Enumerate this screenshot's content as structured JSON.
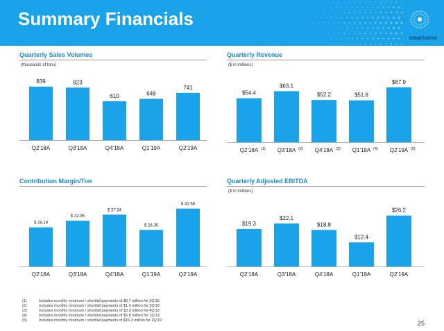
{
  "header": {
    "title": "Summary Financials",
    "brand": "smartsand"
  },
  "colors": {
    "header_bg": "#1aa3e8",
    "bar": "#1aa3e8",
    "title": "#1a8ad8"
  },
  "chart_data": [
    {
      "type": "bar",
      "title": "Quarterly Sales Volumes",
      "subtitle": "(thousands of tons)",
      "categories": [
        "Q2'18A",
        "Q3'18A",
        "Q4'18A",
        "Q1'19A",
        "Q2'19A"
      ],
      "category_notes": [
        "",
        "",
        "",
        "",
        ""
      ],
      "values": [
        839,
        823,
        610,
        648,
        741
      ],
      "labels": [
        "839",
        "823",
        "610",
        "648",
        "741"
      ],
      "ylim": [
        0,
        1000
      ]
    },
    {
      "type": "bar",
      "title": "Quarterly Revenue",
      "subtitle": "($ in millions)",
      "categories": [
        "Q2'18A",
        "Q3'18A",
        "Q4'18A",
        "Q1'19A",
        "Q2'19A"
      ],
      "category_notes": [
        "(1)",
        "(2)",
        "(3)",
        "(4)",
        "(5)"
      ],
      "values": [
        54.4,
        63.1,
        52.2,
        51.8,
        67.9
      ],
      "labels": [
        "$54.4",
        "$63.1",
        "$52.2",
        "$51.8",
        "$67.9"
      ],
      "ylim": [
        0,
        78
      ]
    },
    {
      "type": "bar",
      "title": "Contribution Margin/Ton",
      "subtitle": "",
      "categories": [
        "Q2'18A",
        "Q3'18A",
        "Q4'18A",
        "Q1'19A",
        "Q2'19A"
      ],
      "category_notes": [
        "",
        "",
        "",
        "",
        ""
      ],
      "values": [
        28.19,
        32.95,
        37.34,
        26.35,
        41.68
      ],
      "labels": [
        "$ 28.19",
        "$ 32.95",
        "$ 37.34",
        "$ 26.35",
        "$ 41.68"
      ],
      "ylim": [
        0,
        45
      ]
    },
    {
      "type": "bar",
      "title": "Quarterly Adjusted EBITDA",
      "subtitle": "($ in millions)",
      "categories": [
        "Q2'18A",
        "Q3'18A",
        "Q4'18A",
        "Q1'19A",
        "Q2'19A"
      ],
      "category_notes": [
        "",
        "",
        "",
        "",
        ""
      ],
      "values": [
        19.3,
        22.1,
        18.8,
        12.4,
        26.2
      ],
      "labels": [
        "$19.3",
        "$22.1",
        "$18.8",
        "$12.4",
        "$26.2"
      ],
      "ylim": [
        0,
        30
      ]
    }
  ],
  "footnotes": [
    {
      "num": "(1)",
      "text": "Includes monthly minimum / shortfall payments of $0.7 million for 2Q'18"
    },
    {
      "num": "(2)",
      "text": "Includes monthly minimum / shortfall payments of $1.4 million for 3Q'18"
    },
    {
      "num": "(3)",
      "text": "Includes monthly minimum / shortfall payments of $3.9 million for 4Q'18"
    },
    {
      "num": "(4)",
      "text": "Includes monthly minimum / shortfall payments of $5.8 million for 1Q'19"
    },
    {
      "num": "(5)",
      "text": "Includes monthly minimum / shortfall payments of $16.3 million for 2Q'19"
    }
  ],
  "page_number": "25"
}
